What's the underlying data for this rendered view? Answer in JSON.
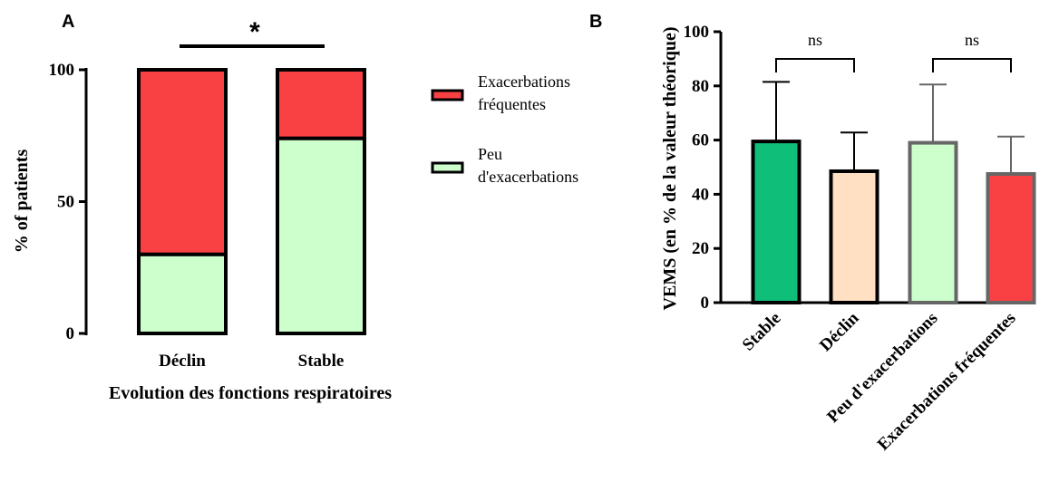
{
  "panels": {
    "a_letter": "A",
    "b_letter": "B"
  },
  "chart_data": [
    {
      "type": "bar",
      "stacked": true,
      "xlabel": "Evolution des fonctions respiratoires",
      "ylabel": "% of patients",
      "categories": [
        "Déclin",
        "Stable"
      ],
      "ylim": [
        0,
        100
      ],
      "yticks": [
        "0",
        "50",
        "100"
      ],
      "series": [
        {
          "name": "Peu d'exacerbations",
          "legend_lines": [
            "Peu",
            "d'exacerbations"
          ],
          "values": [
            30,
            74
          ],
          "color": "#ccffcc"
        },
        {
          "name": "Exacerbations fréquentes",
          "legend_lines": [
            "Exacerbations",
            "fréquentes"
          ],
          "values": [
            70,
            26
          ],
          "color": "#f94144"
        }
      ],
      "legend_position": "right",
      "significance": "*",
      "grid": false
    },
    {
      "type": "bar",
      "ylabel": "VEMS (en % de la valeur théorique)",
      "categories": [
        "Stable",
        "Déclin",
        "Peu d'exacerbations",
        "Exacerbations fréquentes"
      ],
      "values": [
        59.5,
        48.5,
        59,
        47.5
      ],
      "error_upper": [
        81.5,
        62.8,
        80.5,
        61.3
      ],
      "colors": [
        "#0fbf79",
        "#ffe0c2",
        "#ccffcc",
        "#f94144"
      ],
      "edge_colors": [
        "#000000",
        "#000000",
        "#666666",
        "#666666"
      ],
      "ylim": [
        0,
        100
      ],
      "yticks": [
        "0",
        "20",
        "40",
        "60",
        "80",
        "100"
      ],
      "comparisons": [
        {
          "pair": [
            0,
            1
          ],
          "label": "ns"
        },
        {
          "pair": [
            2,
            3
          ],
          "label": "ns"
        }
      ],
      "grid": false
    }
  ]
}
